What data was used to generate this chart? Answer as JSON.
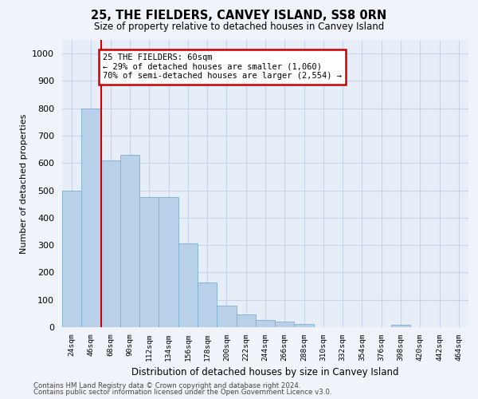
{
  "title": "25, THE FIELDERS, CANVEY ISLAND, SS8 0RN",
  "subtitle": "Size of property relative to detached houses in Canvey Island",
  "xlabel": "Distribution of detached houses by size in Canvey Island",
  "ylabel": "Number of detached properties",
  "footer_line1": "Contains HM Land Registry data © Crown copyright and database right 2024.",
  "footer_line2": "Contains public sector information licensed under the Open Government Licence v3.0.",
  "categories": [
    "24sqm",
    "46sqm",
    "68sqm",
    "90sqm",
    "112sqm",
    "134sqm",
    "156sqm",
    "178sqm",
    "200sqm",
    "222sqm",
    "244sqm",
    "266sqm",
    "288sqm",
    "310sqm",
    "332sqm",
    "354sqm",
    "376sqm",
    "398sqm",
    "420sqm",
    "442sqm",
    "464sqm"
  ],
  "values": [
    500,
    800,
    610,
    630,
    475,
    475,
    305,
    162,
    80,
    47,
    25,
    20,
    13,
    0,
    0,
    0,
    0,
    10,
    0,
    0,
    0
  ],
  "bar_color": "#b8d0e8",
  "bar_edge_color": "#7aafd4",
  "red_line_x": 1.5,
  "annotation_text": "25 THE FIELDERS: 60sqm\n← 29% of detached houses are smaller (1,060)\n70% of semi-detached houses are larger (2,554) →",
  "annotation_box_color": "#ffffff",
  "annotation_box_edge": "#cc0000",
  "ylim": [
    0,
    1050
  ],
  "yticks": [
    0,
    100,
    200,
    300,
    400,
    500,
    600,
    700,
    800,
    900,
    1000
  ],
  "grid_color": "#c8d4e8",
  "background_color": "#f0f4fa",
  "plot_bg_color": "#e8eef8"
}
